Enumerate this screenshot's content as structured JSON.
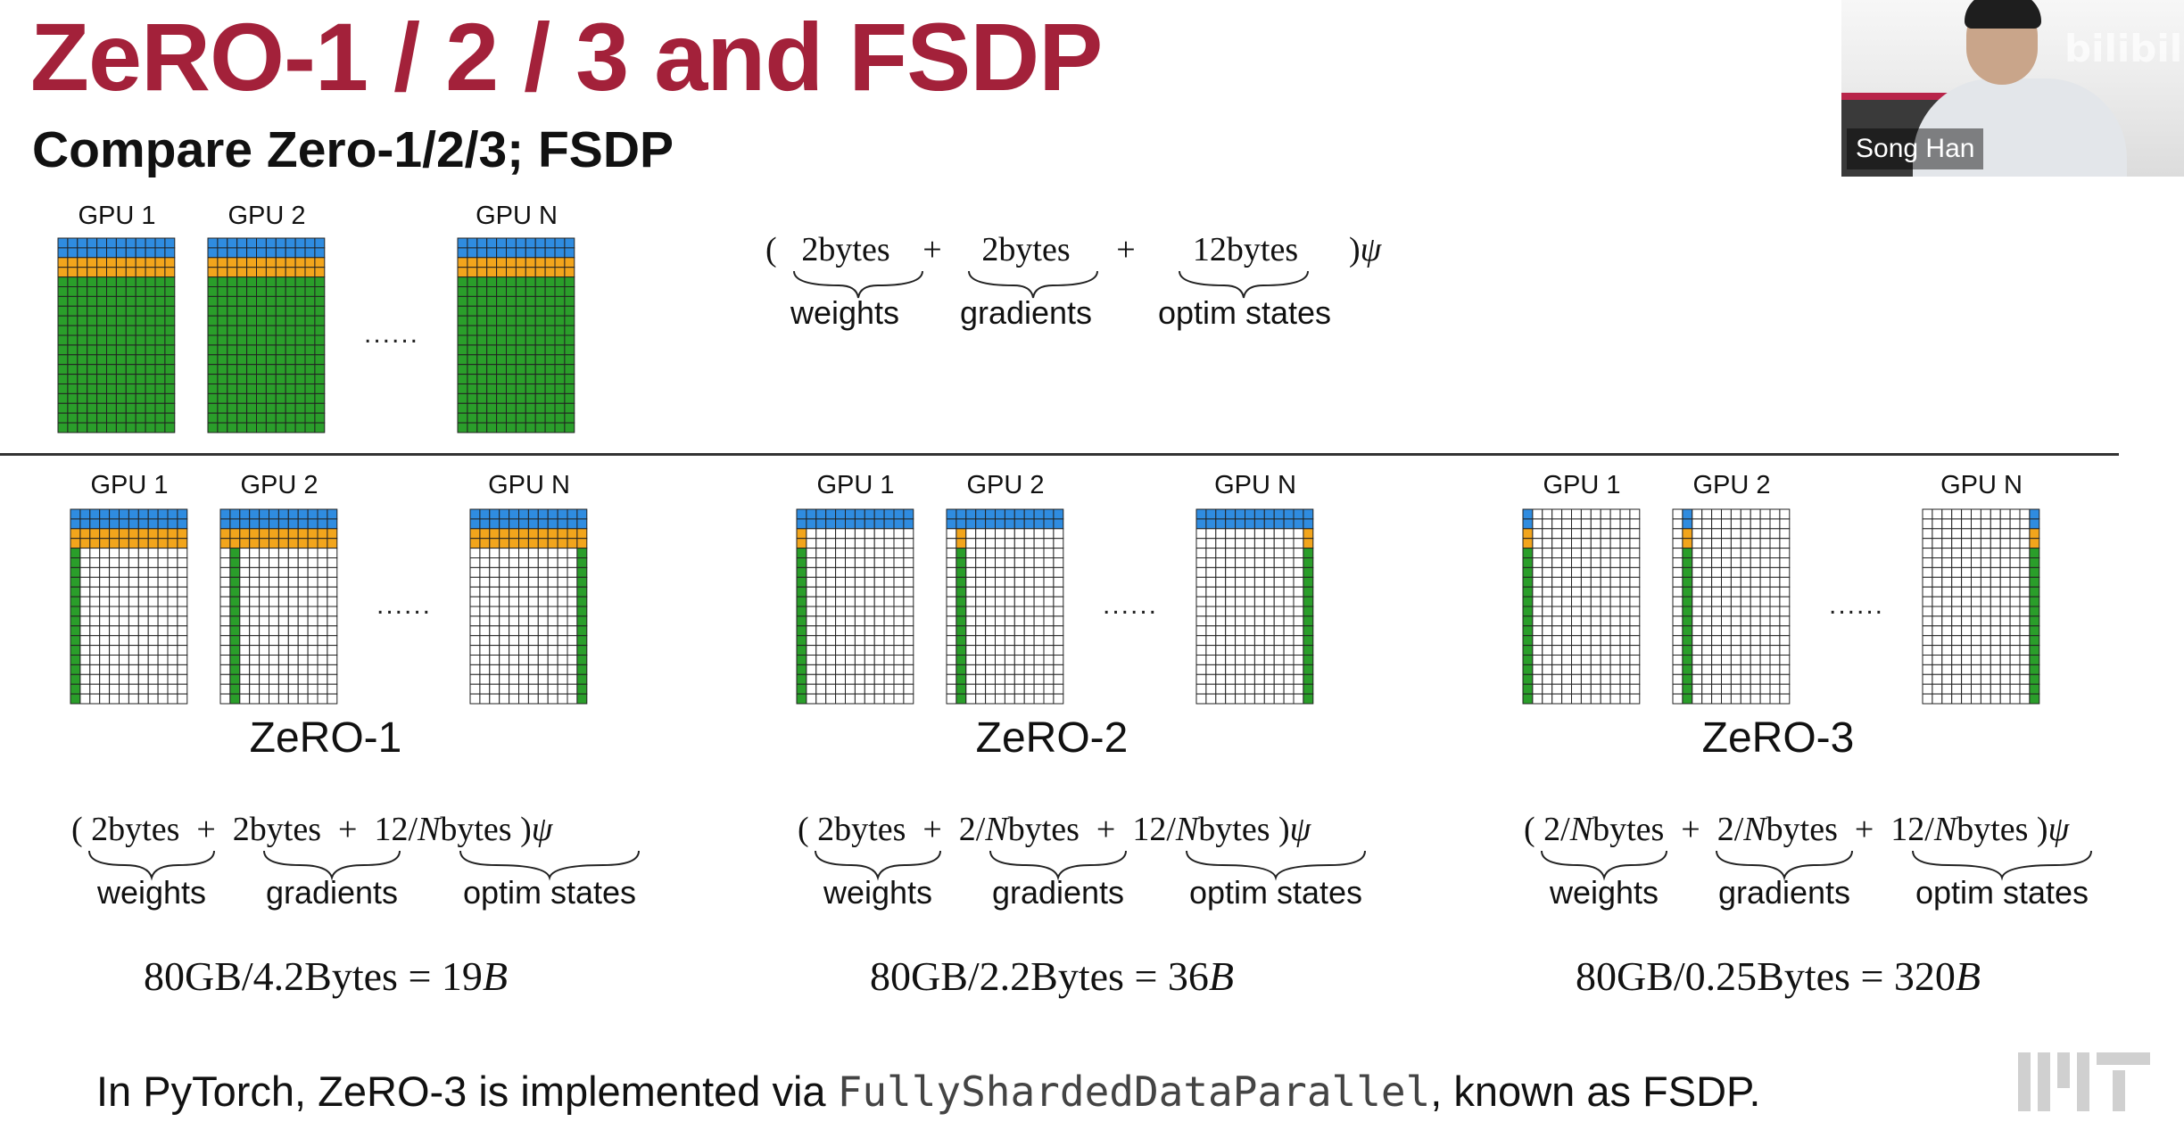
{
  "title": "ZeRO-1 / 2 / 3 and FSDP",
  "subtitle": "Compare Zero-1/2/3; FSDP",
  "webcam": {
    "presenter_name": "Song Han",
    "watermark": "bilibili"
  },
  "colors": {
    "weights": "#2f8ce0",
    "gradients": "#f2a51c",
    "optim_states": "#2a9e2a",
    "empty": "#ffffff",
    "grid_line": "#222222",
    "title": "#a3213a"
  },
  "ellipsis": "......",
  "baseline": {
    "gpu_labels": [
      "GPU 1",
      "GPU 2",
      "GPU N"
    ],
    "formula": {
      "open": "(",
      "terms": [
        "2bytes",
        "+",
        "2bytes",
        "+",
        "12bytes"
      ],
      "close": ")",
      "psi": "ψ",
      "labels": [
        "weights",
        "gradients",
        "optim states"
      ]
    }
  },
  "schemes": [
    {
      "name": "ZeRO-1",
      "gpu_labels": [
        "GPU 1",
        "GPU 2",
        "GPU N"
      ],
      "formula": {
        "open": "(",
        "terms": [
          "2bytes",
          "+",
          "2bytes",
          "+",
          "12/",
          "N",
          "bytes"
        ],
        "close": ")",
        "psi": "ψ",
        "labels": [
          "weights",
          "gradients",
          "optim states"
        ]
      },
      "capacity": {
        "lhs": "80GB/4.2Bytes = 19",
        "unit": "B"
      }
    },
    {
      "name": "ZeRO-2",
      "gpu_labels": [
        "GPU 1",
        "GPU 2",
        "GPU N"
      ],
      "formula": {
        "open": "(",
        "terms": [
          "2bytes",
          "+",
          "2/",
          "N",
          "bytes",
          "+",
          "12/",
          "N",
          "bytes"
        ],
        "close": ")",
        "psi": "ψ",
        "labels": [
          "weights",
          "gradients",
          "optim states"
        ]
      },
      "capacity": {
        "lhs": "80GB/2.2Bytes = 36",
        "unit": "B"
      }
    },
    {
      "name": "ZeRO-3",
      "gpu_labels": [
        "GPU 1",
        "GPU 2",
        "GPU N"
      ],
      "formula": {
        "open": "(",
        "terms": [
          "2/",
          "N",
          "bytes",
          "+",
          "2/",
          "N",
          "bytes",
          "+",
          "12/",
          "N",
          "bytes"
        ],
        "close": ")",
        "psi": "ψ",
        "labels": [
          "weights",
          "gradients",
          "optim states"
        ]
      },
      "capacity": {
        "lhs": "80GB/0.25Bytes = 320",
        "unit": "B"
      }
    }
  ],
  "footer": {
    "prefix": "In PyTorch, ZeRO-3 is implemented via ",
    "code": "FullyShardedDataParallel",
    "suffix": ", known as FSDP."
  },
  "logo": "MIT"
}
